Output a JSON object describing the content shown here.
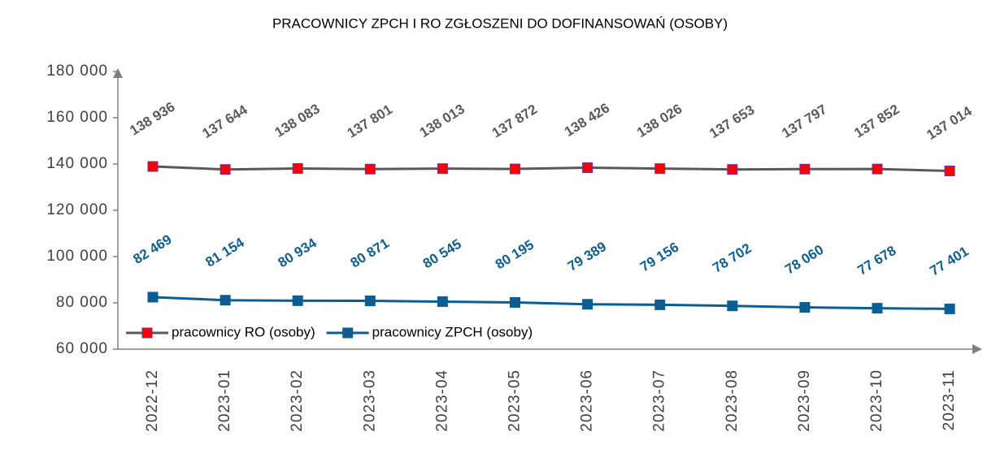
{
  "chart_data": {
    "type": "line",
    "title": "PRACOWNICY ZPCH I RO ZGŁOSZENI DO DOFINANSOWAŃ (OSOBY)",
    "categories": [
      "2022-12",
      "2023-01",
      "2023-02",
      "2023-03",
      "2023-04",
      "2023-05",
      "2023-06",
      "2023-07",
      "2023-08",
      "2023-09",
      "2023-10",
      "2023-11"
    ],
    "series": [
      {
        "name": "pracownicy RO (osoby)",
        "color": "#595959",
        "marker_color": "#ff0000",
        "values": [
          138936,
          137644,
          138083,
          137801,
          138013,
          137872,
          138426,
          138026,
          137653,
          137797,
          137852,
          137014
        ],
        "value_labels": [
          "138 936",
          "137 644",
          "138 083",
          "137 801",
          "138 013",
          "137 872",
          "138 426",
          "138 026",
          "137 653",
          "137 797",
          "137 852",
          "137 014"
        ]
      },
      {
        "name": "pracownicy ZPCH (osoby)",
        "color": "#0b5e93",
        "marker_color": "#0b5e93",
        "values": [
          82469,
          81154,
          80934,
          80871,
          80545,
          80195,
          79389,
          79156,
          78702,
          78060,
          77678,
          77401
        ],
        "value_labels": [
          "82 469",
          "81 154",
          "80 934",
          "80 871",
          "80 545",
          "80 195",
          "79 389",
          "79 156",
          "78 702",
          "78 060",
          "77 678",
          "77 401"
        ]
      }
    ],
    "ylim": [
      60000,
      180000
    ],
    "yticks": [
      {
        "value": 60000,
        "label": "60 000"
      },
      {
        "value": 80000,
        "label": "80 000"
      },
      {
        "value": 100000,
        "label": "100 000"
      },
      {
        "value": 120000,
        "label": "120 000"
      },
      {
        "value": 140000,
        "label": "140 000"
      },
      {
        "value": 160000,
        "label": "160 000"
      },
      {
        "value": 180000,
        "label": "180 000"
      }
    ],
    "legend_position": "lower left"
  }
}
